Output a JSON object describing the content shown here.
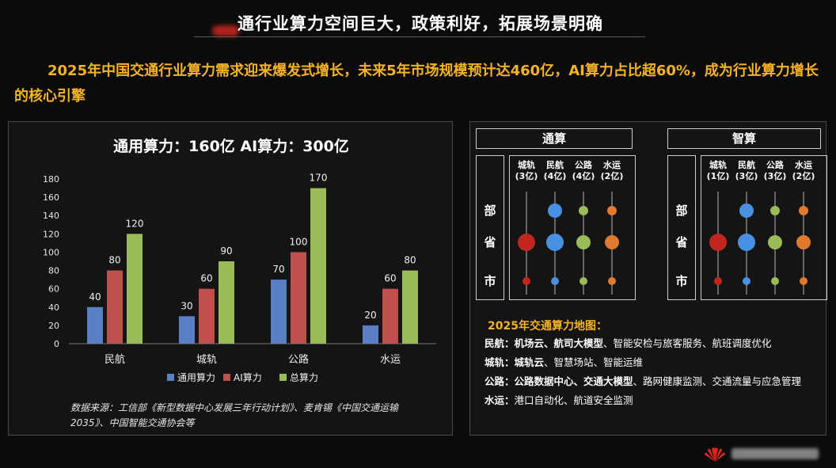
{
  "slide": {
    "title": "通行业算力空间巨大，政策利好，拓展场景明确",
    "headline": "2025年中国交通行业算力需求迎来爆发式增长，未来5年市场规模预计达460亿，AI算力占比超60%，成为行业算力增长的核心引擎"
  },
  "chart_data": {
    "type": "bar",
    "title": "通用算力：160亿   AI算力：300亿",
    "categories": [
      "民航",
      "城轨",
      "公路",
      "水运"
    ],
    "series": [
      {
        "name": "通用算力",
        "color": "#5b7fc4",
        "values": [
          40,
          30,
          70,
          20
        ]
      },
      {
        "name": "AI算力",
        "color": "#c0504d",
        "values": [
          80,
          60,
          100,
          60
        ]
      },
      {
        "name": "总算力",
        "color": "#9bbb59",
        "values": [
          120,
          90,
          170,
          80
        ]
      }
    ],
    "yticks": [
      0,
      20,
      40,
      60,
      80,
      100,
      120,
      140,
      160,
      180
    ],
    "ylim": [
      0,
      180
    ],
    "legend_position": "bottom",
    "grid": false
  },
  "source_note": "数据来源：工信部《新型数据中心发展三年行动计划》、麦肯锡《中国交通运输2035》、中国智能交通协会等",
  "diagram": {
    "levels": [
      "部",
      "省",
      "市"
    ],
    "groups": [
      {
        "name": "通算",
        "columns": [
          {
            "label": "城轨",
            "amount": "(3亿)",
            "color": "#c0261e"
          },
          {
            "label": "民航",
            "amount": "(4亿)",
            "color": "#4a90e2"
          },
          {
            "label": "公路",
            "amount": "(4亿)",
            "color": "#9bbb59"
          },
          {
            "label": "水运",
            "amount": "(2亿)",
            "color": "#e07a2e"
          }
        ]
      },
      {
        "name": "智算",
        "columns": [
          {
            "label": "城轨",
            "amount": "(1亿)",
            "color": "#c0261e"
          },
          {
            "label": "民航",
            "amount": "(3亿)",
            "color": "#4a90e2"
          },
          {
            "label": "公路",
            "amount": "(3亿)",
            "color": "#9bbb59"
          },
          {
            "label": "水运",
            "amount": "(2亿)",
            "color": "#e07a2e"
          }
        ]
      }
    ]
  },
  "map": {
    "title": "2025年交通算力地图：",
    "items": [
      {
        "label": "民航：",
        "bold": "机场云、航司大模型",
        "rest": "、智能安检与旅客服务、航班调度优化"
      },
      {
        "label": "城轨：",
        "bold": "城轨云",
        "rest": "、智慧场站、智能运维"
      },
      {
        "label": "公路：",
        "bold": "公路数据中心、交通大模型",
        "rest": "、路网健康监测、交通流量与应急管理"
      },
      {
        "label": "水运：",
        "bold": "",
        "rest": "港口自动化、航道安全监测"
      }
    ]
  }
}
